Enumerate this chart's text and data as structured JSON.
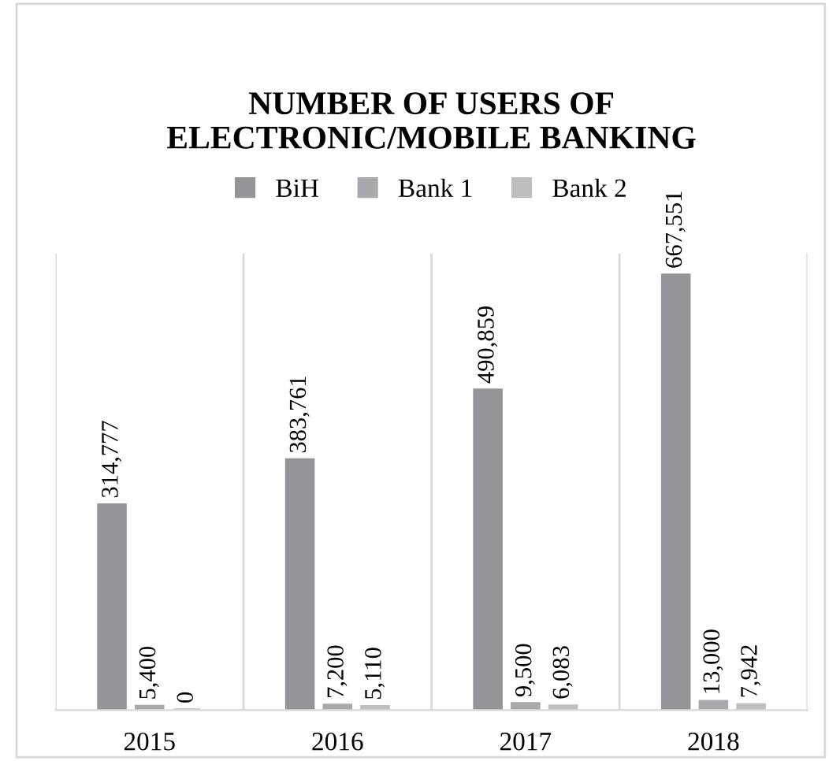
{
  "chart_data": {
    "type": "bar",
    "title": "NUMBER OF USERS OF\nELECTRONIC/MOBILE BANKING",
    "categories": [
      "2015",
      "2016",
      "2017",
      "2018"
    ],
    "series": [
      {
        "name": "BiH",
        "color": "#939598",
        "values": [
          314777,
          383761,
          490859,
          667551
        ],
        "value_labels": [
          "314,777",
          "383,761",
          "490,859",
          "667,551"
        ]
      },
      {
        "name": "Bank 1",
        "color": "#a7a9ac",
        "values": [
          5400,
          7200,
          9500,
          13000
        ],
        "value_labels": [
          "5,400",
          "7,200",
          "9,500",
          "13,000"
        ]
      },
      {
        "name": "Bank 2",
        "color": "#bcbec0",
        "values": [
          0,
          5110,
          6083,
          7942
        ],
        "value_labels": [
          "0",
          "5,110",
          "6,083",
          "7,942"
        ]
      }
    ],
    "grid": "x",
    "legend": "top"
  }
}
